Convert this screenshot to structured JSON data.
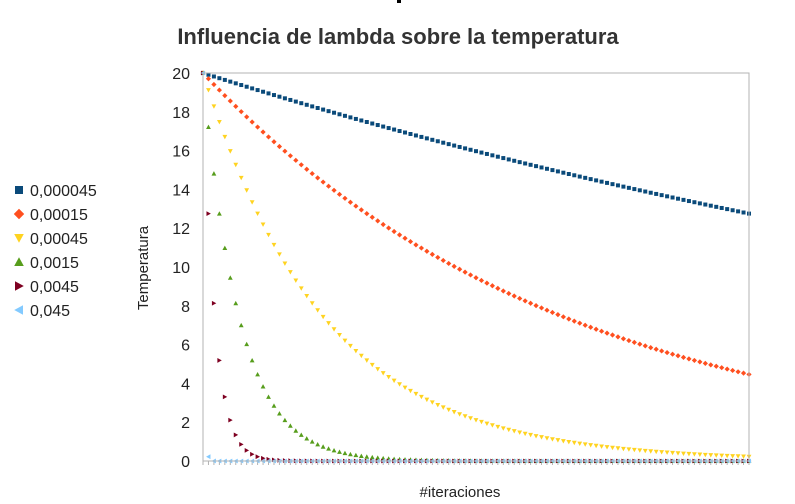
{
  "chart_data": {
    "type": "scatter",
    "title": "Influencia de lambda sobre la temperatura",
    "xlabel": "#iteraciones",
    "ylabel": "Temperatura",
    "ylim": [
      0,
      20
    ],
    "yticks": [
      0,
      2,
      4,
      6,
      8,
      10,
      12,
      14,
      16,
      18,
      20
    ],
    "xlim": [
      0,
      10000
    ],
    "x_tick_labels": "none",
    "grid": "horizontal-off, plot border only",
    "legend_position": "left",
    "initial_value": 20,
    "point_interval": 100,
    "series": [
      {
        "name": "0,000045",
        "lambda": 4.5e-05,
        "color": "#0a4a7a",
        "marker": "square",
        "sampled_points": [
          [
            0,
            20
          ],
          [
            2500,
            17.9
          ],
          [
            5000,
            16.0
          ],
          [
            7500,
            14.3
          ],
          [
            10000,
            12.75
          ]
        ]
      },
      {
        "name": "0,00015",
        "lambda": 0.00015,
        "color": "#ff4f1f",
        "marker": "diamond",
        "sampled_points": [
          [
            0,
            20
          ],
          [
            2500,
            13.7
          ],
          [
            5000,
            9.45
          ],
          [
            7500,
            6.5
          ],
          [
            10000,
            4.45
          ]
        ]
      },
      {
        "name": "0,00045",
        "lambda": 0.00045,
        "color": "#ffd320",
        "marker": "triangle-down",
        "sampled_points": [
          [
            0,
            20
          ],
          [
            1000,
            12.75
          ],
          [
            2500,
            6.5
          ],
          [
            5000,
            2.1
          ],
          [
            10000,
            0.22
          ]
        ]
      },
      {
        "name": "0,0015",
        "lambda": 0.0015,
        "color": "#579d1c",
        "marker": "triangle-up",
        "sampled_points": [
          [
            0,
            20
          ],
          [
            500,
            9.45
          ],
          [
            1000,
            4.45
          ],
          [
            2000,
            1.0
          ],
          [
            4000,
            0.05
          ]
        ]
      },
      {
        "name": "0,0045",
        "lambda": 0.0045,
        "color": "#7e0021",
        "marker": "triangle-right",
        "sampled_points": [
          [
            0,
            20
          ],
          [
            100,
            12.75
          ],
          [
            200,
            8.1
          ],
          [
            400,
            3.3
          ],
          [
            800,
            0.55
          ]
        ]
      },
      {
        "name": "0,045",
        "lambda": 0.045,
        "color": "#83caff",
        "marker": "triangle-left",
        "sampled_points": [
          [
            0,
            20
          ],
          [
            100,
            0.22
          ],
          [
            200,
            0.0
          ]
        ]
      }
    ]
  }
}
